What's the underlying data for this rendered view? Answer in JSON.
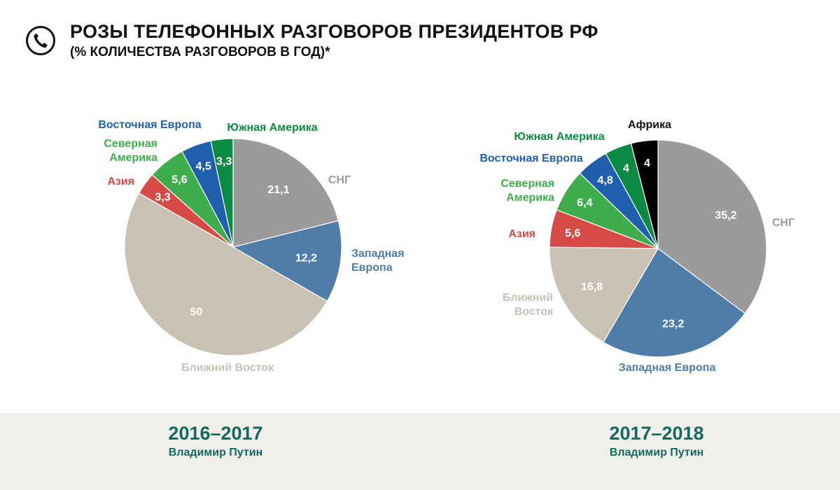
{
  "header": {
    "title": "РОЗЫ ТЕЛЕФОННЫХ РАЗГОВОРОВ ПРЕЗИДЕНТОВ РФ",
    "subtitle": "(% КОЛИЧЕСТВА РАЗГОВОРОВ В ГОД)*",
    "icon": "phone-icon"
  },
  "colors": {
    "СНГ": "#9b9b9b",
    "Западная Европа": "#4f7ca8",
    "Ближний Восток": "#c9c1b3",
    "Азия": "#d64a48",
    "Северная Америка": "#3eae4d",
    "Восточная Европа": "#1f5fad",
    "Южная Америка": "#0a8a43",
    "Африка": "#000000"
  },
  "chart_data": [
    {
      "type": "pie",
      "period": "2016–2017",
      "person": "Владимир Путин",
      "slices": [
        {
          "label": "СНГ",
          "label_lines": [
            "СНГ"
          ],
          "value": 21.1,
          "value_text": "21,1"
        },
        {
          "label": "Западная Европа",
          "label_lines": [
            "Западная",
            "Европа"
          ],
          "value": 12.2,
          "value_text": "12,2"
        },
        {
          "label": "Ближний Восток",
          "label_lines": [
            "Ближний Восток"
          ],
          "value": 50,
          "value_text": "50"
        },
        {
          "label": "Азия",
          "label_lines": [
            "Азия"
          ],
          "value": 3.3,
          "value_text": "3,3"
        },
        {
          "label": "Северная Америка",
          "label_lines": [
            "Северная",
            "Америка"
          ],
          "value": 5.6,
          "value_text": "5,6"
        },
        {
          "label": "Восточная Европа",
          "label_lines": [
            "Восточная Европа"
          ],
          "value": 4.5,
          "value_text": "4,5"
        },
        {
          "label": "Южная Америка",
          "label_lines": [
            "Южная Америка"
          ],
          "value": 3.3,
          "value_text": "3,3"
        }
      ]
    },
    {
      "type": "pie",
      "period": "2017–2018",
      "person": "Владимир Путин",
      "slices": [
        {
          "label": "СНГ",
          "label_lines": [
            "СНГ"
          ],
          "value": 35.2,
          "value_text": "35,2"
        },
        {
          "label": "Западная Европа",
          "label_lines": [
            "Западная Европа"
          ],
          "value": 23.2,
          "value_text": "23,2"
        },
        {
          "label": "Ближний Восток",
          "label_lines": [
            "Ближний",
            "Восток"
          ],
          "value": 16.8,
          "value_text": "16,8"
        },
        {
          "label": "Азия",
          "label_lines": [
            "Азия"
          ],
          "value": 5.6,
          "value_text": "5,6"
        },
        {
          "label": "Северная Америка",
          "label_lines": [
            "Северная",
            "Америка"
          ],
          "value": 6.4,
          "value_text": "6,4"
        },
        {
          "label": "Восточная Европа",
          "label_lines": [
            "Восточная Европа"
          ],
          "value": 4.8,
          "value_text": "4,8"
        },
        {
          "label": "Южная Америка",
          "label_lines": [
            "Южная Америка"
          ],
          "value": 4,
          "value_text": "4"
        },
        {
          "label": "Африка",
          "label_lines": [
            "Африка"
          ],
          "value": 4,
          "value_text": "4"
        }
      ]
    }
  ]
}
